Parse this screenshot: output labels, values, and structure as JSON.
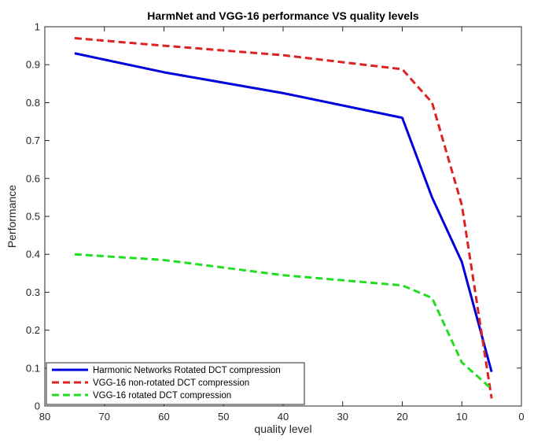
{
  "chart_data": {
    "type": "line",
    "title": "HarmNet and VGG-16 performance VS quality levels",
    "xlabel": "quality level",
    "ylabel": "Performance",
    "xlim": [
      80,
      0
    ],
    "ylim": [
      0,
      1
    ],
    "x_reversed": true,
    "xticks": [
      80,
      70,
      60,
      50,
      40,
      30,
      20,
      10,
      0
    ],
    "yticks": [
      0,
      0.1,
      0.2,
      0.3,
      0.4,
      0.5,
      0.6,
      0.7,
      0.8,
      0.9,
      1
    ],
    "grid": false,
    "legend_position": "bottom-left",
    "series": [
      {
        "name": "Harmonic Networks Rotated DCT compression",
        "color": "#0000dd",
        "style": "solid",
        "x": [
          75,
          60,
          40,
          20,
          15,
          10,
          5
        ],
        "y": [
          0.93,
          0.88,
          0.825,
          0.76,
          0.55,
          0.38,
          0.09
        ]
      },
      {
        "name": "VGG-16 non-rotated DCT compression",
        "color": "#dd2222",
        "style": "dashed",
        "x": [
          75,
          60,
          40,
          20,
          15,
          10,
          5
        ],
        "y": [
          0.97,
          0.95,
          0.925,
          0.888,
          0.8,
          0.53,
          0.02
        ]
      },
      {
        "name": "VGG-16 rotated DCT compression",
        "color": "#22dd22",
        "style": "dashed",
        "x": [
          75,
          60,
          40,
          20,
          15,
          10,
          5
        ],
        "y": [
          0.4,
          0.385,
          0.345,
          0.318,
          0.285,
          0.115,
          0.045
        ]
      }
    ]
  }
}
